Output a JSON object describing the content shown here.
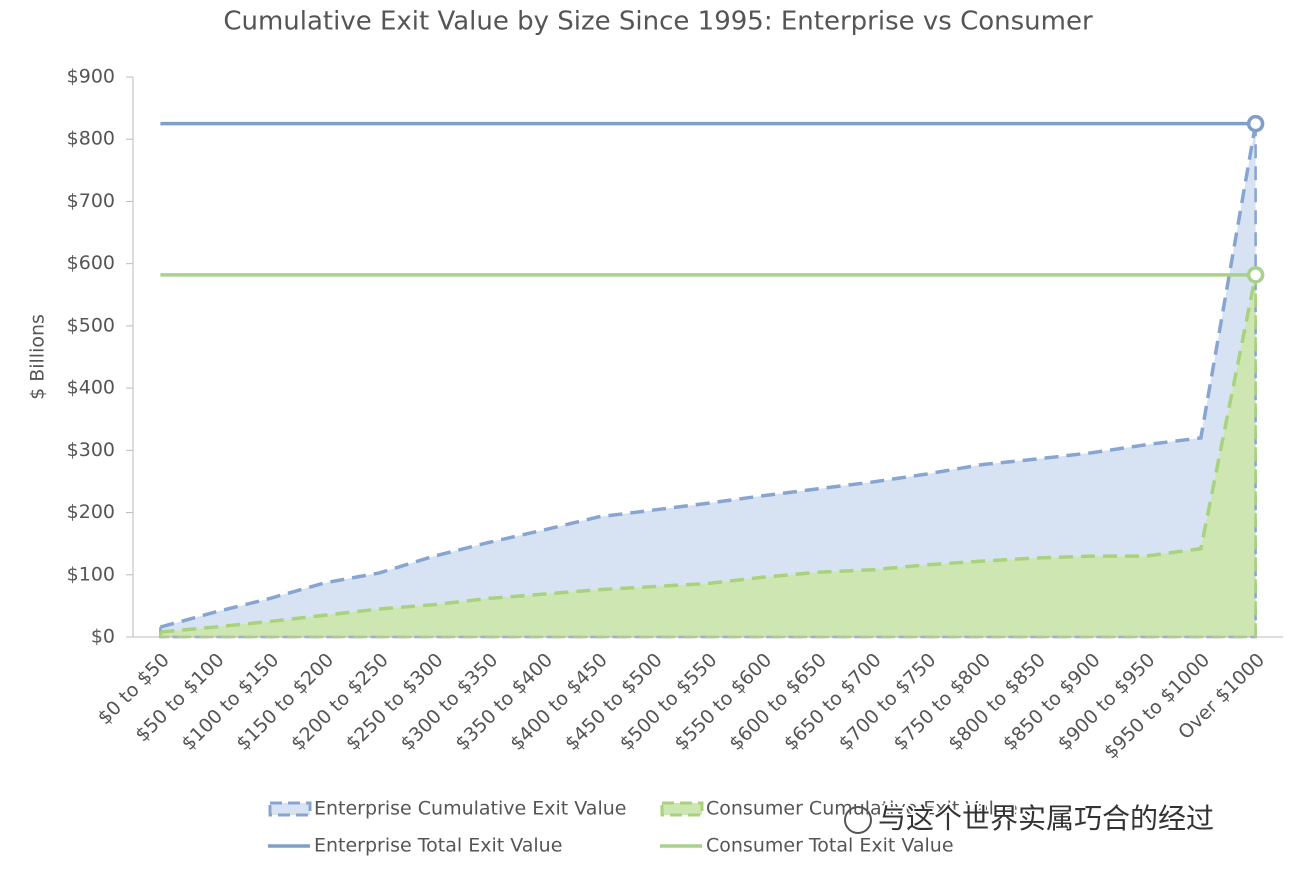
{
  "chart_data": {
    "type": "area",
    "title": "Cumulative Exit Value by Size Since 1995: Enterprise vs Consumer",
    "y_label": "$ Billions",
    "categories": [
      "$0 to $50",
      "$50 to $100",
      "$100 to $150",
      "$150 to $200",
      "$200 to $250",
      "$250 to $300",
      "$300 to $350",
      "$350 to $400",
      "$400 to $450",
      "$450 to $500",
      "$500 to $550",
      "$550 to $600",
      "$600 to $650",
      "$650 to $700",
      "$700 to $750",
      "$750 to $800",
      "$800 to $850",
      "$850 to $900",
      "$900 to $950",
      "$950 to $1000",
      "Over $1000"
    ],
    "series": [
      {
        "name": "Enterprise Cumulative Exit Value",
        "color": "#87a5d0",
        "fill": "#d7e3f2",
        "values": [
          16,
          40,
          62,
          87,
          103,
          130,
          152,
          172,
          193,
          204,
          215,
          227,
          238,
          249,
          262,
          277,
          286,
          296,
          309,
          320,
          825
        ]
      },
      {
        "name": "Consumer Cumulative Exit Value",
        "color": "#a9d27c",
        "fill": "#cde6b2",
        "values": [
          8,
          16,
          25,
          35,
          45,
          52,
          62,
          69,
          76,
          81,
          86,
          96,
          104,
          108,
          116,
          122,
          127,
          130,
          130,
          142,
          582
        ]
      }
    ],
    "totals": [
      {
        "name": "Enterprise Total Exit Value",
        "color": "#7f9fc9",
        "value": 825
      },
      {
        "name": "Consumer Total Exit Value",
        "color": "#a8d18b",
        "value": 582
      }
    ],
    "ylim": [
      0,
      900
    ],
    "yticks": [
      {
        "value": 0,
        "label": "$0"
      },
      {
        "value": 100,
        "label": "$100"
      },
      {
        "value": 200,
        "label": "$200"
      },
      {
        "value": 300,
        "label": "$300"
      },
      {
        "value": 400,
        "label": "$400"
      },
      {
        "value": 500,
        "label": "$500"
      },
      {
        "value": 600,
        "label": "$600"
      },
      {
        "value": 700,
        "label": "$700"
      },
      {
        "value": 800,
        "label": "$800"
      },
      {
        "value": 900,
        "label": "$900"
      }
    ],
    "legend": "bottom",
    "watermark": "与这个世界实属巧合的经过"
  }
}
